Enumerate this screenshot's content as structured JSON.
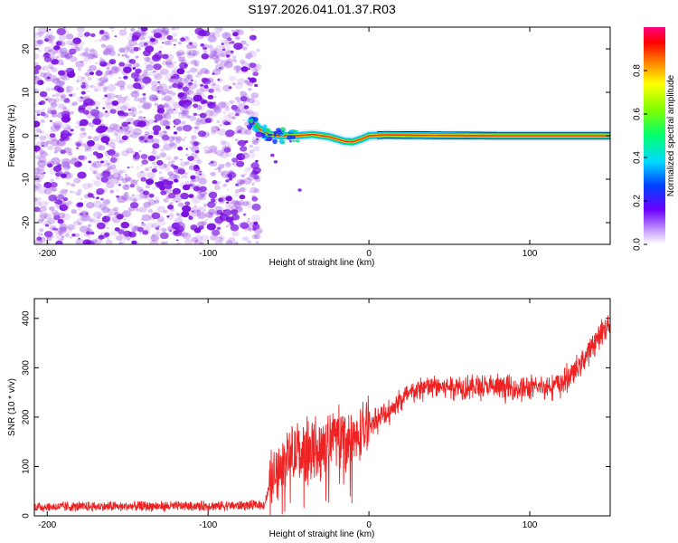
{
  "title": "S197.2026.041.01.37.R03",
  "colors": {
    "axis": "#000000",
    "snr_line": "#ee2222",
    "noise": "#9a4fe6",
    "noise_dark": "#7a10e0"
  },
  "chart_data": [
    {
      "type": "heatmap",
      "xlabel": "Height of straight line (km)",
      "ylabel": "Frequency (Hz)",
      "xlim": [
        -208,
        150
      ],
      "ylim": [
        -25,
        25
      ],
      "xticks": [
        -200,
        -100,
        0,
        100
      ],
      "yticks": [
        -20,
        -10,
        0,
        10,
        20
      ],
      "noise_region_x": [
        -208,
        -72
      ],
      "ridge": {
        "x": [
          -73,
          -68,
          -62,
          -55,
          -45,
          -35,
          -25,
          -15,
          -10,
          -5,
          0,
          10,
          40,
          80,
          150
        ],
        "y": [
          3.5,
          1.5,
          0.3,
          0.0,
          0.0,
          0.3,
          -0.2,
          -1.3,
          -1.4,
          -0.8,
          0.0,
          0.2,
          0.1,
          0.0,
          0.0
        ],
        "amplitude": [
          0.35,
          0.4,
          0.5,
          0.6,
          0.7,
          0.75,
          0.8,
          0.85,
          0.88,
          0.9,
          0.92,
          0.95,
          0.95,
          0.95,
          0.95
        ]
      },
      "colorbar": {
        "label": "Normalized spectral amplitude",
        "ticks": [
          0.0,
          0.2,
          0.4,
          0.6,
          0.8
        ],
        "range": [
          0,
          1
        ]
      }
    },
    {
      "type": "line",
      "xlabel": "Height of straight line (km)",
      "ylabel": "SNR (10 * v/v)",
      "xlim": [
        -208,
        150
      ],
      "ylim": [
        0,
        440
      ],
      "xticks": [
        -200,
        -100,
        0,
        100
      ],
      "yticks": [
        0,
        100,
        200,
        300,
        400
      ],
      "series": [
        {
          "name": "SNR",
          "x": [
            -208,
            -150,
            -100,
            -65,
            -60,
            -50,
            -40,
            -30,
            -20,
            -10,
            0,
            10,
            20,
            30,
            40,
            50,
            60,
            70,
            80,
            90,
            100,
            110,
            120,
            130,
            140,
            150
          ],
          "y": [
            18,
            19,
            20,
            22,
            80,
            120,
            130,
            140,
            165,
            150,
            185,
            205,
            235,
            255,
            262,
            262,
            262,
            260,
            260,
            258,
            258,
            262,
            268,
            300,
            350,
            395
          ]
        }
      ]
    }
  ]
}
